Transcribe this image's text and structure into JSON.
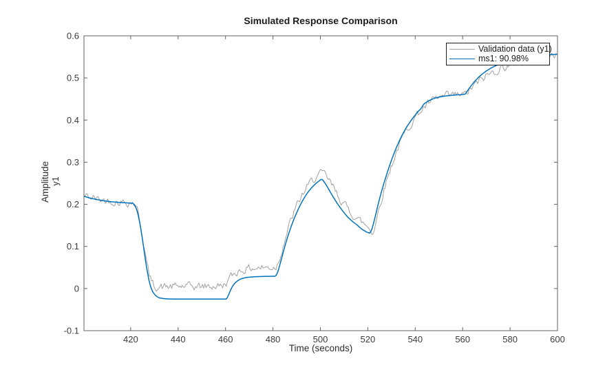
{
  "chart_data": {
    "type": "line",
    "title": "Simulated Response Comparison",
    "xlabel": "Time (seconds)",
    "ylabel": "Amplitude",
    "ylabel_channel": "y1",
    "xlim": [
      400.3,
      600
    ],
    "ylim": [
      -0.1,
      0.6
    ],
    "xticks": [
      420,
      440,
      460,
      480,
      500,
      520,
      540,
      560,
      580,
      600
    ],
    "yticks": [
      -0.1,
      0,
      0.1,
      0.2,
      0.3,
      0.4,
      0.5,
      0.6
    ],
    "grid": false,
    "legend_position": "northeast",
    "sample_time": 0.5,
    "noise": {
      "seed": 42,
      "amplitude": 0.0085,
      "persistence": 0.45
    },
    "colors": {
      "background": "#ffffff",
      "axis": "#606060",
      "text": "#3b3b3b"
    },
    "series": [
      {
        "name": "Validation data (y1)",
        "color": "#a0a0a0",
        "line_width": 1,
        "noisy": true,
        "keypoints": [
          [
            400.3,
            0.221
          ],
          [
            403,
            0.2165
          ],
          [
            406,
            0.2125
          ],
          [
            409,
            0.2095
          ],
          [
            412,
            0.2075
          ],
          [
            415,
            0.206
          ],
          [
            418,
            0.205
          ],
          [
            421,
            0.2045
          ],
          [
            422,
            0.199
          ],
          [
            423,
            0.184
          ],
          [
            424,
            0.158
          ],
          [
            425,
            0.125
          ],
          [
            426,
            0.087
          ],
          [
            427,
            0.053
          ],
          [
            428,
            0.028
          ],
          [
            429,
            0.0135
          ],
          [
            430,
            0.007
          ],
          [
            431,
            0.0045
          ],
          [
            432,
            0.0038
          ],
          [
            434,
            0.004
          ],
          [
            438,
            0.0045
          ],
          [
            442,
            0.005
          ],
          [
            446,
            0.0048
          ],
          [
            450,
            0.005
          ],
          [
            454,
            0.0052
          ],
          [
            458,
            0.006
          ],
          [
            459.5,
            0.009
          ],
          [
            460.5,
            0.015
          ],
          [
            461.5,
            0.022
          ],
          [
            462.5,
            0.029
          ],
          [
            463.5,
            0.0345
          ],
          [
            464.5,
            0.0385
          ],
          [
            465.5,
            0.0415
          ],
          [
            467,
            0.0445
          ],
          [
            469,
            0.047
          ],
          [
            471,
            0.0485
          ],
          [
            474,
            0.0495
          ],
          [
            478,
            0.05
          ],
          [
            481,
            0.0505
          ],
          [
            481.6,
            0.054
          ],
          [
            482.3,
            0.064
          ],
          [
            483,
            0.077
          ],
          [
            484,
            0.097
          ],
          [
            485,
            0.1165
          ],
          [
            486,
            0.135
          ],
          [
            487,
            0.152
          ],
          [
            488,
            0.1675
          ],
          [
            489,
            0.182
          ],
          [
            490,
            0.195
          ],
          [
            491,
            0.207
          ],
          [
            492,
            0.218
          ],
          [
            493,
            0.228
          ],
          [
            494,
            0.237
          ],
          [
            495,
            0.245
          ],
          [
            496,
            0.2525
          ],
          [
            497,
            0.259
          ],
          [
            498,
            0.2645
          ],
          [
            499,
            0.2685
          ],
          [
            500,
            0.2715
          ],
          [
            500.7,
            0.273
          ],
          [
            501.5,
            0.2715
          ],
          [
            502.5,
            0.266
          ],
          [
            503.5,
            0.258
          ],
          [
            504.5,
            0.2485
          ],
          [
            505.5,
            0.239
          ],
          [
            506.5,
            0.2295
          ],
          [
            507.5,
            0.2205
          ],
          [
            508.5,
            0.212
          ],
          [
            509.5,
            0.204
          ],
          [
            510.5,
            0.1965
          ],
          [
            511.5,
            0.1895
          ],
          [
            512.5,
            0.183
          ],
          [
            513.5,
            0.177
          ],
          [
            514.5,
            0.1715
          ],
          [
            515.5,
            0.1665
          ],
          [
            516.5,
            0.162
          ],
          [
            517.5,
            0.1575
          ],
          [
            518.5,
            0.1535
          ],
          [
            519.5,
            0.1495
          ],
          [
            520.5,
            0.1445
          ],
          [
            521.5,
            0.1375
          ],
          [
            522.3,
            0.1345
          ],
          [
            523,
            0.148
          ],
          [
            523.8,
            0.167
          ],
          [
            524.6,
            0.187
          ],
          [
            525.5,
            0.208
          ],
          [
            526.5,
            0.2285
          ],
          [
            527.5,
            0.248
          ],
          [
            528.5,
            0.2665
          ],
          [
            529.5,
            0.284
          ],
          [
            530.5,
            0.3005
          ],
          [
            531.5,
            0.316
          ],
          [
            532.5,
            0.3305
          ],
          [
            533.5,
            0.344
          ],
          [
            534.5,
            0.356
          ],
          [
            535.5,
            0.367
          ],
          [
            536.5,
            0.377
          ],
          [
            537.5,
            0.3865
          ],
          [
            538.5,
            0.395
          ],
          [
            539.5,
            0.403
          ],
          [
            540.5,
            0.4105
          ],
          [
            541.5,
            0.4175
          ],
          [
            542.5,
            0.4235
          ],
          [
            543.5,
            0.429
          ],
          [
            545,
            0.436
          ],
          [
            546.5,
            0.4425
          ],
          [
            548,
            0.4475
          ],
          [
            550,
            0.4525
          ],
          [
            552,
            0.4555
          ],
          [
            554,
            0.4575
          ],
          [
            556,
            0.4585
          ],
          [
            558,
            0.459
          ],
          [
            561,
            0.4595
          ],
          [
            562,
            0.4655
          ],
          [
            563,
            0.4715
          ],
          [
            564,
            0.477
          ],
          [
            565,
            0.4825
          ],
          [
            566,
            0.4875
          ],
          [
            567,
            0.492
          ],
          [
            568,
            0.4965
          ],
          [
            569,
            0.5005
          ],
          [
            570,
            0.5045
          ],
          [
            571,
            0.508
          ],
          [
            572,
            0.5115
          ],
          [
            573,
            0.5145
          ],
          [
            574,
            0.5175
          ],
          [
            575,
            0.52
          ],
          [
            577,
            0.525
          ],
          [
            579,
            0.5295
          ],
          [
            581,
            0.5335
          ],
          [
            583,
            0.537
          ],
          [
            585,
            0.5405
          ],
          [
            587,
            0.5435
          ],
          [
            589,
            0.5465
          ],
          [
            591,
            0.549
          ],
          [
            594,
            0.5525
          ],
          [
            597,
            0.5555
          ],
          [
            600,
            0.558
          ]
        ]
      },
      {
        "name": "ms1: 90.98%",
        "color": "#0072BD",
        "line_width": 1.5,
        "noisy": false,
        "keypoints": [
          [
            400.3,
            0.219
          ],
          [
            403,
            0.2145
          ],
          [
            406,
            0.211
          ],
          [
            409,
            0.208
          ],
          [
            412,
            0.206
          ],
          [
            415,
            0.2045
          ],
          [
            418,
            0.2035
          ],
          [
            421,
            0.2025
          ],
          [
            422,
            0.196
          ],
          [
            423,
            0.179
          ],
          [
            424,
            0.151
          ],
          [
            425,
            0.116
          ],
          [
            426,
            0.076
          ],
          [
            427,
            0.04
          ],
          [
            428,
            0.012
          ],
          [
            429,
            -0.005
          ],
          [
            430,
            -0.0135
          ],
          [
            431,
            -0.019
          ],
          [
            432,
            -0.022
          ],
          [
            434,
            -0.024
          ],
          [
            436,
            -0.0248
          ],
          [
            440,
            -0.025
          ],
          [
            460.4,
            -0.025
          ],
          [
            461,
            -0.019
          ],
          [
            461.8,
            -0.008
          ],
          [
            462.6,
            0.002
          ],
          [
            463.5,
            0.01
          ],
          [
            464.5,
            0.016
          ],
          [
            465.5,
            0.02
          ],
          [
            466.5,
            0.023
          ],
          [
            468,
            0.0255
          ],
          [
            470,
            0.027
          ],
          [
            473,
            0.0282
          ],
          [
            477,
            0.029
          ],
          [
            481,
            0.0292
          ],
          [
            481.6,
            0.033
          ],
          [
            482.3,
            0.044
          ],
          [
            483,
            0.058
          ],
          [
            484,
            0.079
          ],
          [
            485,
            0.1
          ],
          [
            486,
            0.119
          ],
          [
            487,
            0.1365
          ],
          [
            488,
            0.1525
          ],
          [
            489,
            0.167
          ],
          [
            490,
            0.18
          ],
          [
            491,
            0.1925
          ],
          [
            492,
            0.2035
          ],
          [
            493,
            0.2135
          ],
          [
            494,
            0.2225
          ],
          [
            495,
            0.2305
          ],
          [
            496,
            0.2375
          ],
          [
            497,
            0.2435
          ],
          [
            498,
            0.249
          ],
          [
            499,
            0.2535
          ],
          [
            500,
            0.258
          ],
          [
            500.5,
            0.26
          ],
          [
            501,
            0.258
          ],
          [
            501.7,
            0.2525
          ],
          [
            502.5,
            0.2455
          ],
          [
            503.5,
            0.236
          ],
          [
            504.5,
            0.226
          ],
          [
            505.5,
            0.2165
          ],
          [
            506.5,
            0.2075
          ],
          [
            507.5,
            0.199
          ],
          [
            508.5,
            0.191
          ],
          [
            509.5,
            0.1835
          ],
          [
            510.5,
            0.1765
          ],
          [
            511.5,
            0.17
          ],
          [
            512.5,
            0.1645
          ],
          [
            513.5,
            0.1595
          ],
          [
            514.5,
            0.155
          ],
          [
            515.5,
            0.151
          ],
          [
            516.5,
            0.1455
          ],
          [
            517.5,
            0.141
          ],
          [
            518.5,
            0.1375
          ],
          [
            519.5,
            0.134
          ],
          [
            520.8,
            0.1315
          ],
          [
            521.5,
            0.137
          ],
          [
            522,
            0.146
          ],
          [
            522.8,
            0.163
          ],
          [
            523.6,
            0.182
          ],
          [
            524.5,
            0.203
          ],
          [
            525.5,
            0.2245
          ],
          [
            526.5,
            0.2445
          ],
          [
            527.5,
            0.263
          ],
          [
            528.5,
            0.2805
          ],
          [
            529.5,
            0.297
          ],
          [
            530.5,
            0.3125
          ],
          [
            531.5,
            0.327
          ],
          [
            532.5,
            0.3405
          ],
          [
            533.5,
            0.353
          ],
          [
            534.5,
            0.3645
          ],
          [
            535.5,
            0.375
          ],
          [
            536.5,
            0.3845
          ],
          [
            537.5,
            0.393
          ],
          [
            538.5,
            0.401
          ],
          [
            539.5,
            0.4085
          ],
          [
            540.5,
            0.4155
          ],
          [
            541.5,
            0.422
          ],
          [
            542.5,
            0.4275
          ],
          [
            543.5,
            0.4375
          ],
          [
            545,
            0.4435
          ],
          [
            546.5,
            0.448
          ],
          [
            548,
            0.4515
          ],
          [
            550,
            0.4545
          ],
          [
            552,
            0.4565
          ],
          [
            554,
            0.458
          ],
          [
            556,
            0.459
          ],
          [
            558,
            0.46
          ],
          [
            561,
            0.461
          ],
          [
            561.6,
            0.4655
          ],
          [
            562.3,
            0.4715
          ],
          [
            563,
            0.477
          ],
          [
            564,
            0.4845
          ],
          [
            565,
            0.4915
          ],
          [
            566,
            0.4975
          ],
          [
            567,
            0.503
          ],
          [
            568,
            0.508
          ],
          [
            569,
            0.5125
          ],
          [
            570,
            0.5165
          ],
          [
            571,
            0.52
          ],
          [
            572,
            0.5235
          ],
          [
            573,
            0.5265
          ],
          [
            574,
            0.529
          ],
          [
            575,
            0.5315
          ],
          [
            576.5,
            0.535
          ],
          [
            578,
            0.538
          ],
          [
            580,
            0.5415
          ],
          [
            582,
            0.5445
          ],
          [
            584,
            0.547
          ],
          [
            586,
            0.549
          ],
          [
            588,
            0.5505
          ],
          [
            590,
            0.5525
          ],
          [
            594,
            0.5545
          ],
          [
            600,
            0.556
          ]
        ]
      }
    ]
  }
}
